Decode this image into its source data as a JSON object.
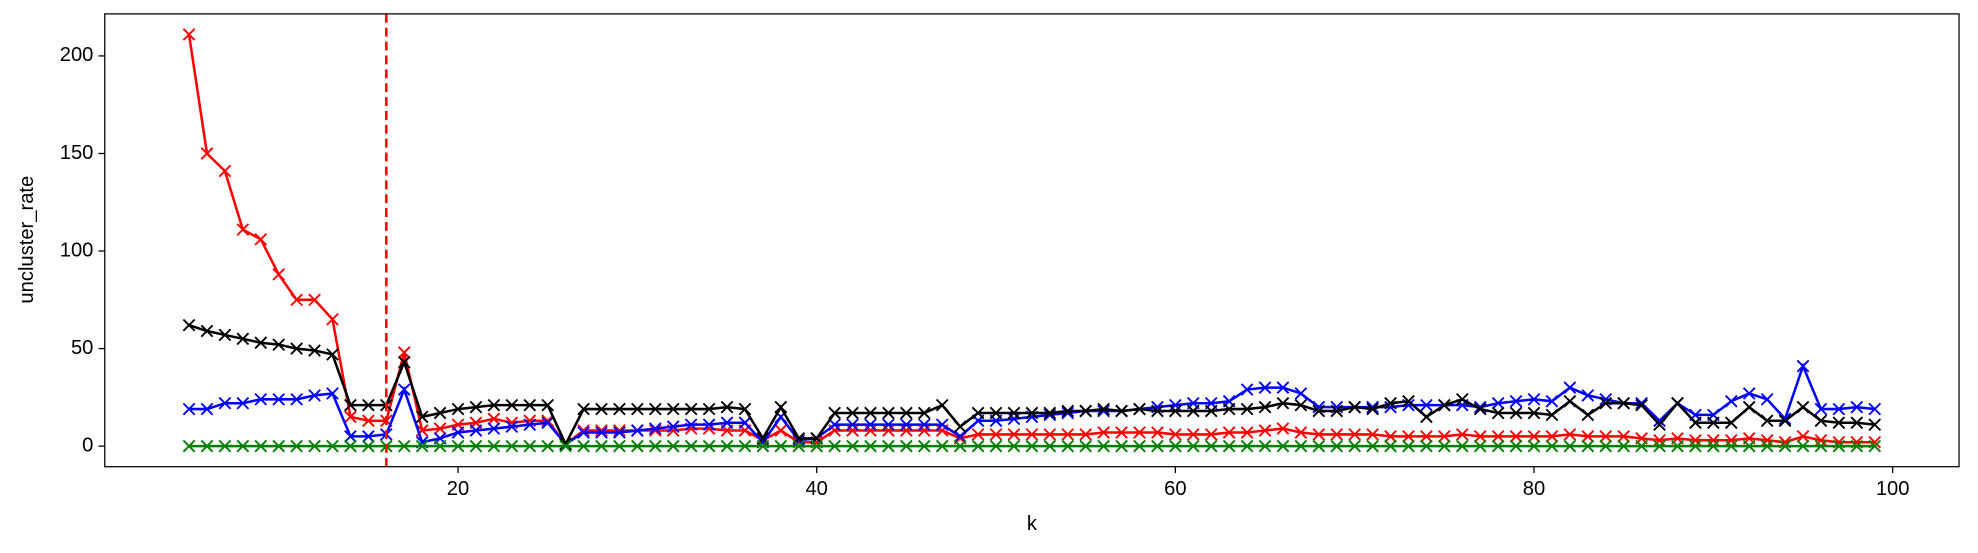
{
  "chart_data": {
    "type": "line",
    "x_label": "k",
    "y_label": "uncluster_rate",
    "xlim": [
      0.3,
      103.7
    ],
    "ylim": [
      -10.55,
      221.55
    ],
    "xticks": [
      20,
      40,
      60,
      80,
      100
    ],
    "yticks": [
      0,
      50,
      100,
      150,
      200
    ],
    "vline": {
      "x": 16,
      "color": "red",
      "style": "dashed"
    },
    "marker": "x",
    "x": [
      5,
      6,
      7,
      8,
      9,
      10,
      11,
      12,
      13,
      14,
      15,
      16,
      17,
      18,
      19,
      20,
      21,
      22,
      23,
      24,
      25,
      26,
      27,
      28,
      29,
      30,
      31,
      32,
      33,
      34,
      35,
      36,
      37,
      38,
      39,
      40,
      41,
      42,
      43,
      44,
      45,
      46,
      47,
      48,
      49,
      50,
      51,
      52,
      53,
      54,
      55,
      56,
      57,
      58,
      59,
      60,
      61,
      62,
      63,
      64,
      65,
      66,
      67,
      68,
      69,
      70,
      71,
      72,
      73,
      74,
      75,
      76,
      77,
      78,
      79,
      80,
      81,
      82,
      83,
      84,
      85,
      86,
      87,
      88,
      89,
      90,
      91,
      92,
      93,
      94,
      95,
      96,
      97,
      98,
      99
    ],
    "series": [
      {
        "color": "red",
        "values": [
          211,
          150,
          141,
          111,
          106,
          88,
          75,
          75,
          65,
          15,
          13,
          13,
          48,
          8,
          9,
          11,
          12,
          14,
          12,
          13,
          13,
          1,
          8,
          8,
          8,
          8,
          8,
          8,
          9,
          9,
          8,
          8,
          3,
          8,
          2,
          2,
          8,
          8,
          8,
          8,
          8,
          8,
          8,
          4,
          6,
          6,
          6,
          6,
          6,
          6,
          6,
          7,
          7,
          7,
          7,
          6,
          6,
          6,
          7,
          7,
          8,
          9,
          7,
          6,
          6,
          6,
          6,
          5,
          5,
          5,
          5,
          6,
          5,
          5,
          5,
          5,
          5,
          6,
          5,
          5,
          5,
          4,
          3,
          4,
          3,
          3,
          3,
          4,
          3,
          2,
          5,
          3,
          2,
          2,
          2
        ]
      },
      {
        "color": "blue",
        "values": [
          19,
          19,
          22,
          22,
          24,
          24,
          24,
          26,
          27,
          5,
          5,
          6,
          29,
          2,
          4,
          7,
          8,
          9,
          10,
          11,
          12,
          1,
          7,
          7,
          7,
          8,
          9,
          10,
          11,
          11,
          12,
          12,
          2,
          15,
          3,
          4,
          11,
          11,
          11,
          11,
          11,
          11,
          11,
          5,
          13,
          13,
          14,
          15,
          16,
          17,
          18,
          18,
          18,
          19,
          20,
          21,
          22,
          22,
          23,
          29,
          30,
          30,
          27,
          20,
          20,
          20,
          20,
          20,
          21,
          21,
          21,
          21,
          20,
          22,
          23,
          24,
          23,
          30,
          26,
          24,
          22,
          22,
          13,
          22,
          16,
          16,
          23,
          27,
          24,
          14,
          41,
          19,
          19,
          20,
          19
        ]
      },
      {
        "color": "black",
        "values": [
          62,
          59,
          57,
          55,
          53,
          52,
          50,
          49,
          47,
          21,
          21,
          21,
          43,
          15,
          17,
          19,
          20,
          21,
          21,
          21,
          21,
          1,
          19,
          19,
          19,
          19,
          19,
          19,
          19,
          19,
          20,
          19,
          4,
          20,
          4,
          4,
          17,
          17,
          17,
          17,
          17,
          17,
          21,
          10,
          17,
          17,
          17,
          17,
          17,
          18,
          18,
          19,
          18,
          19,
          18,
          18,
          18,
          18,
          19,
          19,
          20,
          22,
          21,
          18,
          18,
          20,
          19,
          22,
          23,
          15,
          21,
          24,
          19,
          17,
          17,
          17,
          16,
          23,
          16,
          22,
          22,
          21,
          11,
          22,
          12,
          12,
          12,
          20,
          13,
          13,
          20,
          13,
          12,
          12,
          11
        ]
      },
      {
        "color": "green",
        "values": [
          0,
          0,
          0,
          0,
          0,
          0,
          0,
          0,
          0,
          0,
          0,
          0,
          0,
          0,
          0,
          0,
          0,
          0,
          0,
          0,
          0,
          0,
          0,
          0,
          0,
          0,
          0,
          0,
          0,
          0,
          0,
          0,
          0,
          0,
          0,
          0,
          0,
          0,
          0,
          0,
          0,
          0,
          0,
          0,
          0,
          0,
          0,
          0,
          0,
          0,
          0,
          0,
          0,
          0,
          0,
          0,
          0,
          0,
          0,
          0,
          0,
          0,
          0,
          0,
          0,
          0,
          0,
          0,
          0,
          0,
          0,
          0,
          0,
          0,
          0,
          0,
          0,
          0,
          0,
          0,
          0,
          0,
          0,
          0,
          0,
          0,
          0,
          0,
          0,
          0,
          0,
          0,
          0,
          0,
          0
        ]
      }
    ]
  }
}
